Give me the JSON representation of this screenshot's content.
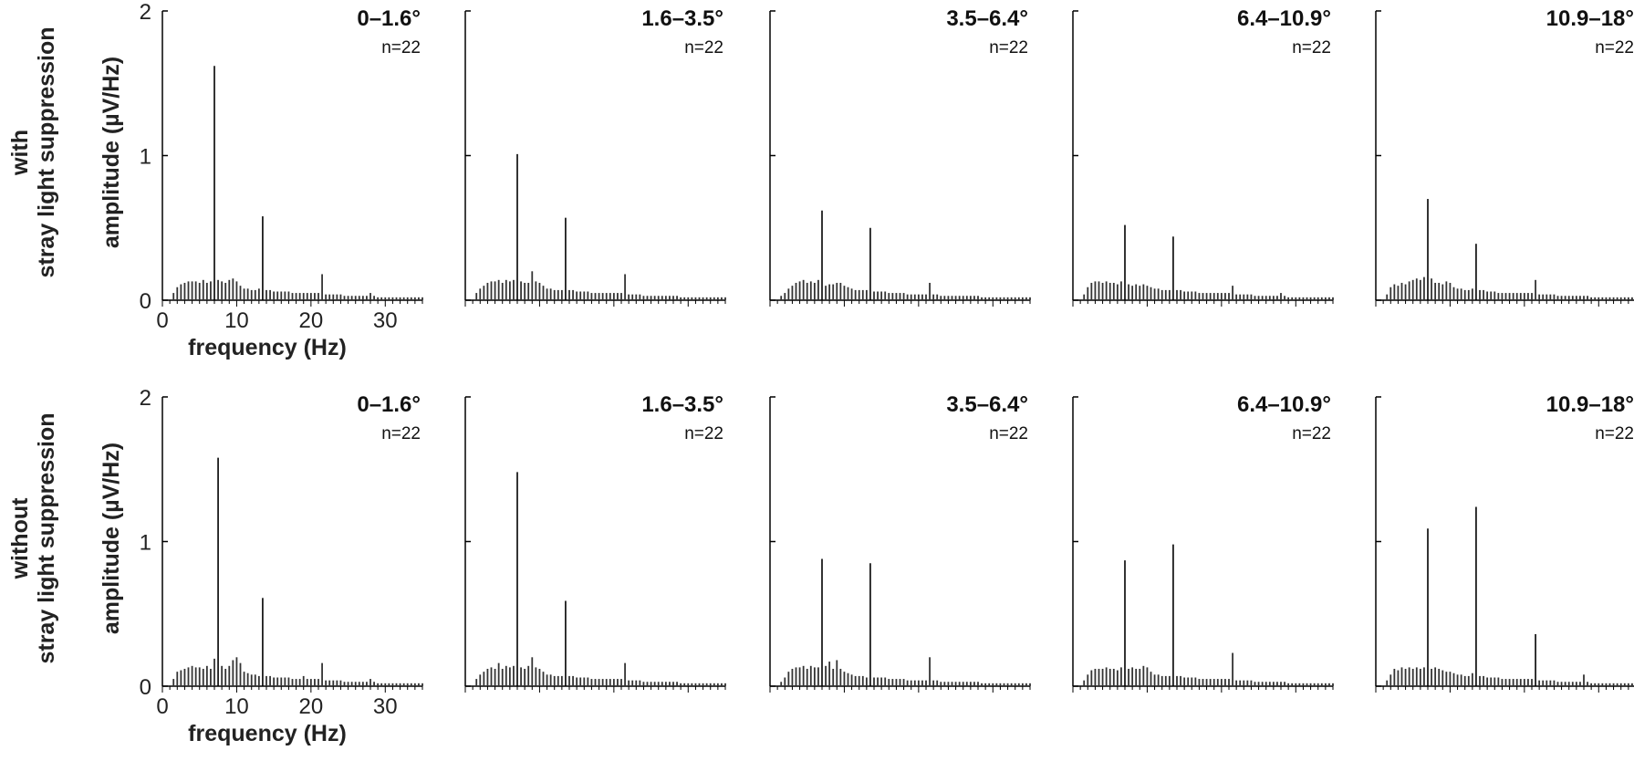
{
  "rows": [
    {
      "label_line1": "with",
      "label_line2": "stray light suppression"
    },
    {
      "label_line1": "without",
      "label_line2": "stray light suppression"
    }
  ],
  "chart_data": {
    "type": "bar",
    "grid": false,
    "xlabel": "frequency (Hz)",
    "ylabel": "amplitude (µV/Hz)",
    "xlim": [
      0,
      35
    ],
    "ylim": [
      0,
      2
    ],
    "xticks": [
      0,
      10,
      20,
      30
    ],
    "yticks": [
      0,
      1,
      2
    ],
    "x": [
      1.5,
      2.0,
      2.5,
      3.0,
      3.5,
      4.0,
      4.5,
      5.0,
      5.5,
      6.0,
      6.5,
      7.0,
      7.5,
      8.0,
      8.5,
      9.0,
      9.5,
      10.0,
      10.5,
      11.0,
      11.5,
      12.0,
      12.5,
      13.0,
      13.5,
      14.0,
      14.5,
      15.0,
      15.5,
      16.0,
      16.5,
      17.0,
      17.5,
      18.0,
      18.5,
      19.0,
      19.5,
      20.0,
      20.5,
      21.0,
      21.5,
      22.0,
      22.5,
      23.0,
      23.5,
      24.0,
      24.5,
      25.0,
      25.5,
      26.0,
      26.5,
      27.0,
      27.5,
      28.0,
      28.5,
      29.0,
      29.5,
      30.0,
      30.5,
      31.0,
      31.5,
      32.0,
      32.5,
      33.0,
      33.5,
      34.0,
      34.5,
      35.0
    ],
    "panels": [
      {
        "row": 0,
        "col": 0,
        "title": "0–1.6°",
        "n_label": "n=22",
        "values": [
          0.05,
          0.09,
          0.11,
          0.12,
          0.13,
          0.13,
          0.13,
          0.12,
          0.14,
          0.12,
          0.13,
          1.62,
          0.14,
          0.13,
          0.12,
          0.14,
          0.15,
          0.13,
          0.1,
          0.08,
          0.08,
          0.07,
          0.07,
          0.08,
          0.58,
          0.07,
          0.07,
          0.06,
          0.06,
          0.06,
          0.06,
          0.06,
          0.05,
          0.05,
          0.05,
          0.05,
          0.05,
          0.05,
          0.05,
          0.05,
          0.18,
          0.04,
          0.04,
          0.04,
          0.04,
          0.04,
          0.03,
          0.03,
          0.03,
          0.03,
          0.03,
          0.03,
          0.03,
          0.05,
          0.03,
          0.02,
          0.02,
          0.02,
          0.02,
          0.02,
          0.02,
          0.02,
          0.02,
          0.02,
          0.02,
          0.02,
          0.02,
          0.02
        ]
      },
      {
        "row": 0,
        "col": 1,
        "title": "1.6–3.5°",
        "n_label": "n=22",
        "values": [
          0.05,
          0.08,
          0.1,
          0.12,
          0.13,
          0.13,
          0.14,
          0.12,
          0.14,
          0.13,
          0.14,
          1.01,
          0.13,
          0.12,
          0.12,
          0.2,
          0.13,
          0.12,
          0.1,
          0.08,
          0.08,
          0.07,
          0.07,
          0.07,
          0.57,
          0.07,
          0.07,
          0.06,
          0.06,
          0.06,
          0.06,
          0.05,
          0.05,
          0.05,
          0.05,
          0.05,
          0.05,
          0.05,
          0.05,
          0.05,
          0.18,
          0.04,
          0.04,
          0.04,
          0.04,
          0.03,
          0.03,
          0.03,
          0.03,
          0.03,
          0.03,
          0.03,
          0.03,
          0.03,
          0.03,
          0.02,
          0.02,
          0.02,
          0.02,
          0.02,
          0.02,
          0.02,
          0.02,
          0.02,
          0.02,
          0.02,
          0.02,
          0.02
        ]
      },
      {
        "row": 0,
        "col": 2,
        "title": "3.5–6.4°",
        "n_label": "n=22",
        "values": [
          0.03,
          0.05,
          0.08,
          0.1,
          0.12,
          0.13,
          0.14,
          0.12,
          0.13,
          0.12,
          0.14,
          0.62,
          0.1,
          0.11,
          0.11,
          0.12,
          0.12,
          0.1,
          0.09,
          0.08,
          0.07,
          0.07,
          0.07,
          0.07,
          0.5,
          0.06,
          0.06,
          0.06,
          0.06,
          0.05,
          0.05,
          0.05,
          0.05,
          0.05,
          0.04,
          0.04,
          0.04,
          0.04,
          0.04,
          0.04,
          0.12,
          0.04,
          0.04,
          0.03,
          0.03,
          0.03,
          0.03,
          0.03,
          0.03,
          0.03,
          0.03,
          0.03,
          0.03,
          0.03,
          0.02,
          0.02,
          0.02,
          0.02,
          0.02,
          0.02,
          0.02,
          0.02,
          0.02,
          0.02,
          0.02,
          0.02,
          0.02,
          0.02
        ]
      },
      {
        "row": 0,
        "col": 3,
        "title": "6.4–10.9°",
        "n_label": "n=22",
        "values": [
          0.04,
          0.09,
          0.12,
          0.13,
          0.13,
          0.12,
          0.13,
          0.12,
          0.12,
          0.11,
          0.13,
          0.52,
          0.11,
          0.1,
          0.11,
          0.1,
          0.11,
          0.1,
          0.09,
          0.08,
          0.08,
          0.07,
          0.07,
          0.07,
          0.44,
          0.07,
          0.07,
          0.06,
          0.06,
          0.06,
          0.06,
          0.05,
          0.05,
          0.05,
          0.05,
          0.05,
          0.05,
          0.05,
          0.05,
          0.05,
          0.1,
          0.04,
          0.04,
          0.04,
          0.04,
          0.04,
          0.03,
          0.03,
          0.03,
          0.03,
          0.03,
          0.03,
          0.03,
          0.05,
          0.03,
          0.02,
          0.02,
          0.02,
          0.02,
          0.02,
          0.02,
          0.02,
          0.02,
          0.02,
          0.02,
          0.02,
          0.02,
          0.02
        ]
      },
      {
        "row": 0,
        "col": 4,
        "title": "10.9–18°",
        "n_label": "n=22",
        "values": [
          0.04,
          0.09,
          0.11,
          0.1,
          0.12,
          0.11,
          0.13,
          0.14,
          0.15,
          0.14,
          0.16,
          0.7,
          0.15,
          0.12,
          0.12,
          0.11,
          0.13,
          0.12,
          0.09,
          0.08,
          0.08,
          0.07,
          0.07,
          0.08,
          0.39,
          0.07,
          0.07,
          0.06,
          0.06,
          0.06,
          0.05,
          0.05,
          0.05,
          0.05,
          0.05,
          0.05,
          0.05,
          0.05,
          0.05,
          0.05,
          0.14,
          0.04,
          0.04,
          0.04,
          0.04,
          0.04,
          0.03,
          0.03,
          0.03,
          0.03,
          0.03,
          0.03,
          0.03,
          0.03,
          0.03,
          0.02,
          0.02,
          0.02,
          0.02,
          0.02,
          0.02,
          0.02,
          0.02,
          0.02,
          0.02,
          0.02,
          0.02,
          0.02
        ]
      },
      {
        "row": 1,
        "col": 0,
        "title": "0–1.6°",
        "n_label": "n=22",
        "values": [
          0.05,
          0.1,
          0.11,
          0.12,
          0.13,
          0.14,
          0.13,
          0.13,
          0.12,
          0.14,
          0.12,
          0.19,
          1.58,
          0.14,
          0.12,
          0.14,
          0.18,
          0.2,
          0.16,
          0.1,
          0.09,
          0.08,
          0.08,
          0.07,
          0.61,
          0.07,
          0.07,
          0.06,
          0.06,
          0.06,
          0.06,
          0.06,
          0.05,
          0.05,
          0.05,
          0.07,
          0.05,
          0.05,
          0.05,
          0.05,
          0.16,
          0.04,
          0.04,
          0.04,
          0.04,
          0.04,
          0.03,
          0.03,
          0.03,
          0.03,
          0.03,
          0.03,
          0.03,
          0.05,
          0.03,
          0.02,
          0.02,
          0.02,
          0.02,
          0.02,
          0.02,
          0.02,
          0.02,
          0.02,
          0.02,
          0.02,
          0.02,
          0.02
        ]
      },
      {
        "row": 1,
        "col": 1,
        "title": "1.6–3.5°",
        "n_label": "n=22",
        "values": [
          0.05,
          0.08,
          0.1,
          0.12,
          0.13,
          0.12,
          0.16,
          0.12,
          0.14,
          0.13,
          0.14,
          1.48,
          0.13,
          0.12,
          0.14,
          0.2,
          0.13,
          0.12,
          0.1,
          0.08,
          0.08,
          0.07,
          0.07,
          0.07,
          0.59,
          0.07,
          0.07,
          0.06,
          0.06,
          0.06,
          0.06,
          0.05,
          0.05,
          0.05,
          0.05,
          0.05,
          0.05,
          0.05,
          0.05,
          0.05,
          0.16,
          0.04,
          0.04,
          0.04,
          0.04,
          0.03,
          0.03,
          0.03,
          0.03,
          0.03,
          0.03,
          0.03,
          0.03,
          0.03,
          0.03,
          0.02,
          0.02,
          0.02,
          0.02,
          0.02,
          0.02,
          0.02,
          0.02,
          0.02,
          0.02,
          0.02,
          0.02,
          0.02
        ]
      },
      {
        "row": 1,
        "col": 2,
        "title": "3.5–6.4°",
        "n_label": "n=22",
        "values": [
          0.03,
          0.06,
          0.1,
          0.12,
          0.13,
          0.13,
          0.14,
          0.12,
          0.14,
          0.13,
          0.13,
          0.88,
          0.14,
          0.17,
          0.12,
          0.18,
          0.12,
          0.1,
          0.09,
          0.08,
          0.07,
          0.07,
          0.07,
          0.06,
          0.85,
          0.06,
          0.06,
          0.06,
          0.06,
          0.05,
          0.05,
          0.05,
          0.05,
          0.05,
          0.04,
          0.04,
          0.04,
          0.04,
          0.04,
          0.04,
          0.2,
          0.04,
          0.04,
          0.03,
          0.03,
          0.03,
          0.03,
          0.03,
          0.03,
          0.03,
          0.03,
          0.03,
          0.03,
          0.03,
          0.02,
          0.02,
          0.02,
          0.02,
          0.02,
          0.02,
          0.02,
          0.02,
          0.02,
          0.02,
          0.02,
          0.02,
          0.02,
          0.02
        ]
      },
      {
        "row": 1,
        "col": 3,
        "title": "6.4–10.9°",
        "n_label": "n=22",
        "values": [
          0.04,
          0.08,
          0.11,
          0.12,
          0.12,
          0.12,
          0.13,
          0.12,
          0.12,
          0.11,
          0.13,
          0.87,
          0.12,
          0.13,
          0.12,
          0.12,
          0.14,
          0.13,
          0.1,
          0.08,
          0.08,
          0.07,
          0.07,
          0.07,
          0.98,
          0.07,
          0.07,
          0.06,
          0.06,
          0.06,
          0.06,
          0.05,
          0.05,
          0.05,
          0.05,
          0.05,
          0.05,
          0.05,
          0.05,
          0.05,
          0.23,
          0.04,
          0.04,
          0.04,
          0.04,
          0.04,
          0.03,
          0.03,
          0.03,
          0.03,
          0.03,
          0.03,
          0.03,
          0.03,
          0.03,
          0.02,
          0.02,
          0.02,
          0.02,
          0.02,
          0.02,
          0.02,
          0.02,
          0.02,
          0.02,
          0.02,
          0.02,
          0.02
        ]
      },
      {
        "row": 1,
        "col": 4,
        "title": "10.9–18°",
        "n_label": "n=22",
        "values": [
          0.04,
          0.08,
          0.12,
          0.11,
          0.13,
          0.12,
          0.13,
          0.12,
          0.13,
          0.12,
          0.13,
          1.09,
          0.12,
          0.13,
          0.12,
          0.11,
          0.1,
          0.1,
          0.09,
          0.08,
          0.08,
          0.07,
          0.07,
          0.09,
          1.24,
          0.07,
          0.07,
          0.06,
          0.06,
          0.06,
          0.06,
          0.05,
          0.05,
          0.05,
          0.05,
          0.05,
          0.05,
          0.05,
          0.05,
          0.05,
          0.36,
          0.04,
          0.04,
          0.04,
          0.04,
          0.04,
          0.03,
          0.03,
          0.03,
          0.03,
          0.03,
          0.03,
          0.03,
          0.08,
          0.03,
          0.02,
          0.02,
          0.02,
          0.02,
          0.02,
          0.02,
          0.02,
          0.02,
          0.02,
          0.02,
          0.02,
          0.02,
          0.02
        ]
      }
    ]
  }
}
